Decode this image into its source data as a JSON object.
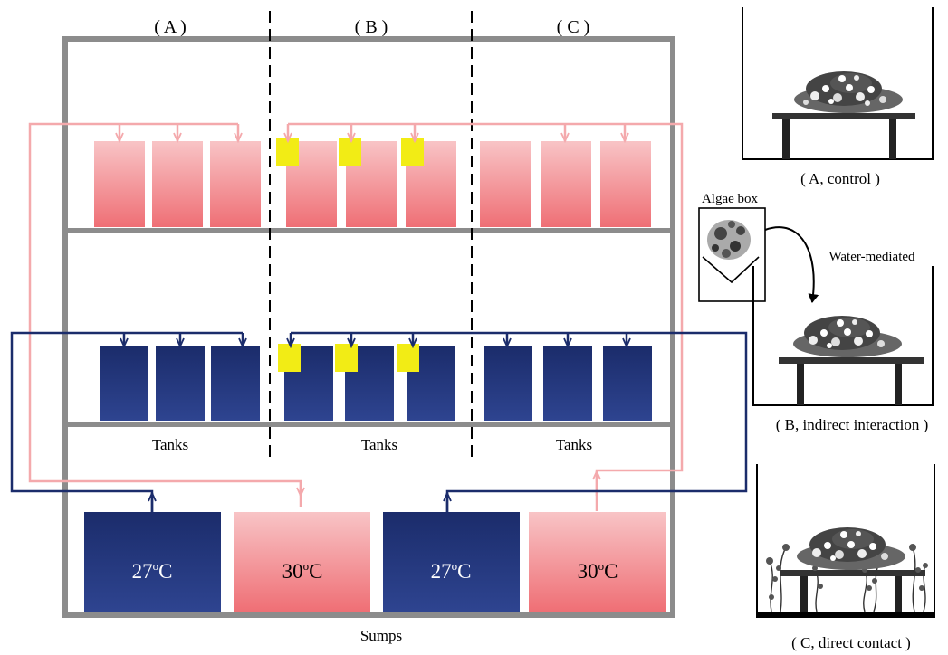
{
  "colors": {
    "frame": "#8c8c8c",
    "pink_top": "#f8c4c6",
    "pink_bottom": "#ef6f75",
    "pink_line": "#f4a9ac",
    "navy_top": "#1b2c6b",
    "navy_bottom": "#2e4490",
    "navy_line": "#1b2c6b",
    "yellow": "#f2ec15"
  },
  "sections": {
    "a": "( A )",
    "b": "( B )",
    "c": "( C )"
  },
  "tanks_label": "Tanks",
  "sumps_label": "Sumps",
  "sumps": [
    {
      "temp": "27",
      "unit": "C",
      "color": "navy"
    },
    {
      "temp": "30",
      "unit": "C",
      "color": "pink"
    },
    {
      "temp": "27",
      "unit": "C",
      "color": "navy"
    },
    {
      "temp": "30",
      "unit": "C",
      "color": "pink"
    }
  ],
  "degree_mark": "o",
  "treatments": {
    "a_caption": "( A, control )",
    "b_caption": "( B, indirect interaction )",
    "c_caption": "( C, direct contact )",
    "algae_box": "Algae box",
    "water_mediated": "Water-mediated"
  }
}
